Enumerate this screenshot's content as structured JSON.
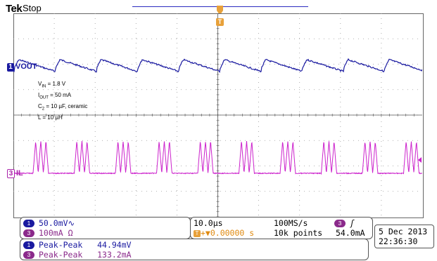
{
  "header": {
    "brand": "Tek",
    "status": "Stop"
  },
  "trigger": {
    "marker_label": "T"
  },
  "channels": {
    "ch1": {
      "number": "1",
      "label": "VOUT",
      "color": "#1a1aa0"
    },
    "ch3": {
      "number": "3",
      "label": "IL",
      "color": "#cc22cc"
    }
  },
  "annotation": {
    "vin": "V",
    "vin_sub": "IN",
    "vin_val": " = 1.8 V",
    "iout": "I",
    "iout_sub": "OUT",
    "iout_val": " = 50 mA",
    "c2": "C",
    "c2_sub": "2",
    "c2_val": " = 10 µF, ceramic",
    "l": "L = 10 µH"
  },
  "scale_panel": {
    "ch1_badge": "1",
    "ch1_scale": "50.0mV",
    "ch1_coupling": "∿",
    "ch3_badge": "3",
    "ch3_scale": "100mA",
    "ch3_coupling": "Ω"
  },
  "time_panel": {
    "timebase": "10.0µs",
    "sample_rate": "100MS/s",
    "trigger_badge": "3",
    "trigger_slope": "ʃ",
    "trigger_icon": "T",
    "trigger_offset": "+▼0.00000 s",
    "record_length": "10k points",
    "trigger_level": "54.0mA"
  },
  "date_panel": {
    "date": "5 Dec  2013",
    "time": "22:36:30"
  },
  "measurements": [
    {
      "badge": "1",
      "name": "Peak-Peak",
      "value": "44.94mV",
      "color": "#1a1aa0"
    },
    {
      "badge": "3",
      "name": "Peak-Peak",
      "value": "133.2mA",
      "color": "#8b2a8b"
    }
  ]
}
